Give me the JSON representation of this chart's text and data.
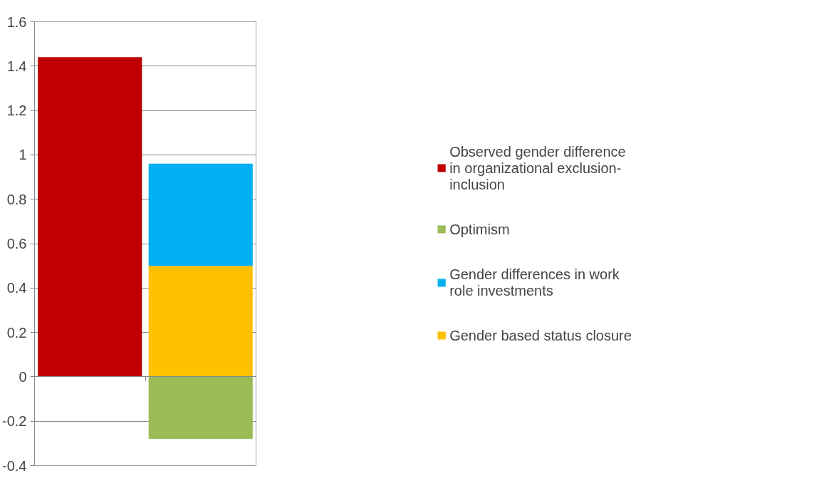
{
  "chart_data": {
    "type": "bar",
    "stacked": true,
    "categories": [
      null,
      null
    ],
    "series": [
      {
        "name": "Gender based status closure",
        "color": "#ffc000",
        "values": [
          null,
          0.5
        ]
      },
      {
        "name": "Gender differences in work role investments",
        "color": "#00b0f0",
        "values": [
          null,
          0.46
        ]
      },
      {
        "name": "Optimism",
        "color": "#9bbb59",
        "values": [
          null,
          -0.28
        ]
      },
      {
        "name": "Observed gender difference in organizational exclusion-inclusion",
        "color": "#c00000",
        "values": [
          1.44,
          null
        ]
      }
    ],
    "ylim": [
      -0.4,
      1.6
    ],
    "yticks": [
      -0.4,
      -0.2,
      0,
      0.2,
      0.4,
      0.6,
      0.8,
      1,
      1.2,
      1.4,
      1.6
    ],
    "grid": "y",
    "legend": "right"
  }
}
